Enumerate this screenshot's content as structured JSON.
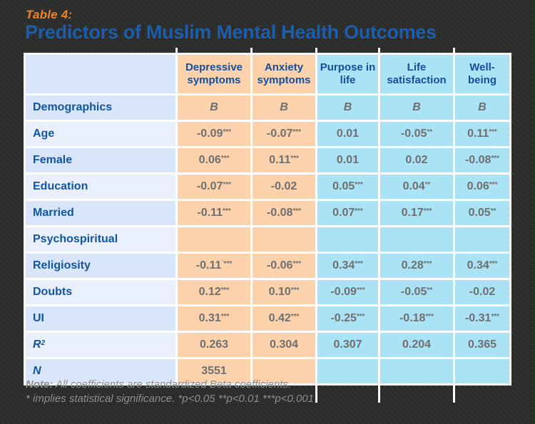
{
  "title": {
    "eyebrow": "Table 4:",
    "main": "Predictors of Muslim Mental Health Outcomes"
  },
  "chart_data": {
    "type": "table",
    "title": "Predictors of Muslim Mental Health Outcomes",
    "columns": [
      {
        "label": "",
        "group": "label"
      },
      {
        "label": "Depressive symptoms",
        "group": "negative"
      },
      {
        "label": "Anxiety symptoms",
        "group": "negative"
      },
      {
        "label": "Purpose in life",
        "group": "positive"
      },
      {
        "label": "Life satisfaction",
        "group": "positive"
      },
      {
        "label": "Well-being",
        "group": "positive"
      }
    ],
    "rows": [
      {
        "label": "Demographics",
        "values": [
          "B",
          "B",
          "B",
          "B",
          "B"
        ],
        "values_italic": true
      },
      {
        "label": "Age",
        "values": [
          "-0.09***",
          "-0.07***",
          "0.01",
          "-0.05**",
          "0.11***"
        ]
      },
      {
        "label": "Female",
        "values": [
          "0.06***",
          "0.11***",
          "0.01",
          "0.02",
          "-0.08***"
        ]
      },
      {
        "label": "Education",
        "values": [
          "-0.07***",
          "-0.02",
          "0.05***",
          "0.04**",
          "0.06***"
        ]
      },
      {
        "label": "Married",
        "values": [
          "-0.11***",
          "-0.08***",
          "0.07***",
          "0.17***",
          "0.05**"
        ]
      },
      {
        "label": "Psychospiritual",
        "values": [
          "",
          "",
          "",
          "",
          ""
        ]
      },
      {
        "label": "Religiosity",
        "values": [
          "-0.11`***",
          "-0.06***",
          "0.34***",
          "0.28***",
          "0.34***"
        ]
      },
      {
        "label": "Doubts",
        "values": [
          "0.12***",
          "0.10***",
          "-0.09***",
          "-0.05**",
          "-0.02"
        ]
      },
      {
        "label": "UI",
        "values": [
          "0.31***",
          "0.42***",
          "-0.25***",
          "-0.18***",
          "-0.31***"
        ]
      },
      {
        "label": "R",
        "label_sup": "2",
        "label_italic": true,
        "values": [
          "0.263",
          "0.304",
          "0.307",
          "0.204",
          "0.365"
        ]
      },
      {
        "label": "N",
        "label_italic": true,
        "values": [
          "3551",
          "",
          "",
          "",
          ""
        ]
      }
    ]
  },
  "footnote": {
    "note_label": "Note:",
    "line1_rest": " All coefficients are standardized Beta coefficients.",
    "line2": "* implies statistical significance. *p<0.05 **p<0.01 ***p<0.001"
  },
  "colors": {
    "accent_orange": "#F5831F",
    "title_blue": "#1B5EAD",
    "header_text_blue": "#134F9C",
    "row_label_blue": "#1155A3",
    "negative_cell_peach": "#FBD2AC",
    "positive_cell_cyan": "#A9E3F5",
    "label_cell_dark": "#D9E5F8",
    "label_cell_light": "#E9F0FC",
    "value_gray": "#6F6F6F",
    "grid_white": "#FFFFFF"
  }
}
